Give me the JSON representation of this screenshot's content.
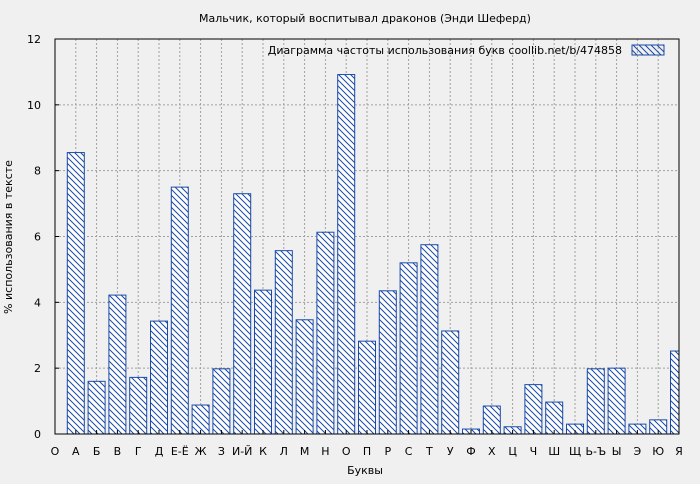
{
  "chart_data": {
    "type": "bar",
    "title": "Мальчик, который воспитывал драконов (Энди Шеферд)",
    "xlabel": "Буквы",
    "ylabel": "% использования в тексте",
    "legend": {
      "label": "Диаграмма частоты использования букв  coollib.net/b/474858",
      "position": "top-right"
    },
    "ylim": [
      0,
      12
    ],
    "yticks": [
      0,
      2,
      4,
      6,
      8,
      10,
      12
    ],
    "grid": true,
    "categories": [
      "О",
      "А",
      "Б",
      "В",
      "Г",
      "Д",
      "Е-Ё",
      "Ж",
      "З",
      "И-Й",
      "К",
      "Л",
      "М",
      "Н",
      "О",
      "П",
      "Р",
      "С",
      "Т",
      "У",
      "Ф",
      "Х",
      "Ц",
      "Ч",
      "Ш",
      "Щ",
      "Ь-Ъ",
      "Ы",
      "Э",
      "Ю",
      "Я"
    ],
    "values": [
      null,
      8.55,
      1.6,
      4.22,
      1.72,
      3.43,
      7.5,
      0.88,
      1.98,
      7.3,
      4.37,
      5.57,
      3.47,
      6.13,
      10.92,
      2.82,
      4.35,
      5.2,
      5.75,
      3.13,
      0.15,
      0.85,
      0.22,
      1.5,
      0.97,
      0.3,
      1.98,
      2.0,
      0.3,
      0.43,
      2.52
    ],
    "colors": {
      "bar_stroke": "#1a4aa6",
      "hatch": "#1a4aa6",
      "bar_fill": "#ffffff",
      "grid": "#a0a0a0",
      "background": "#f0f0f0"
    }
  }
}
